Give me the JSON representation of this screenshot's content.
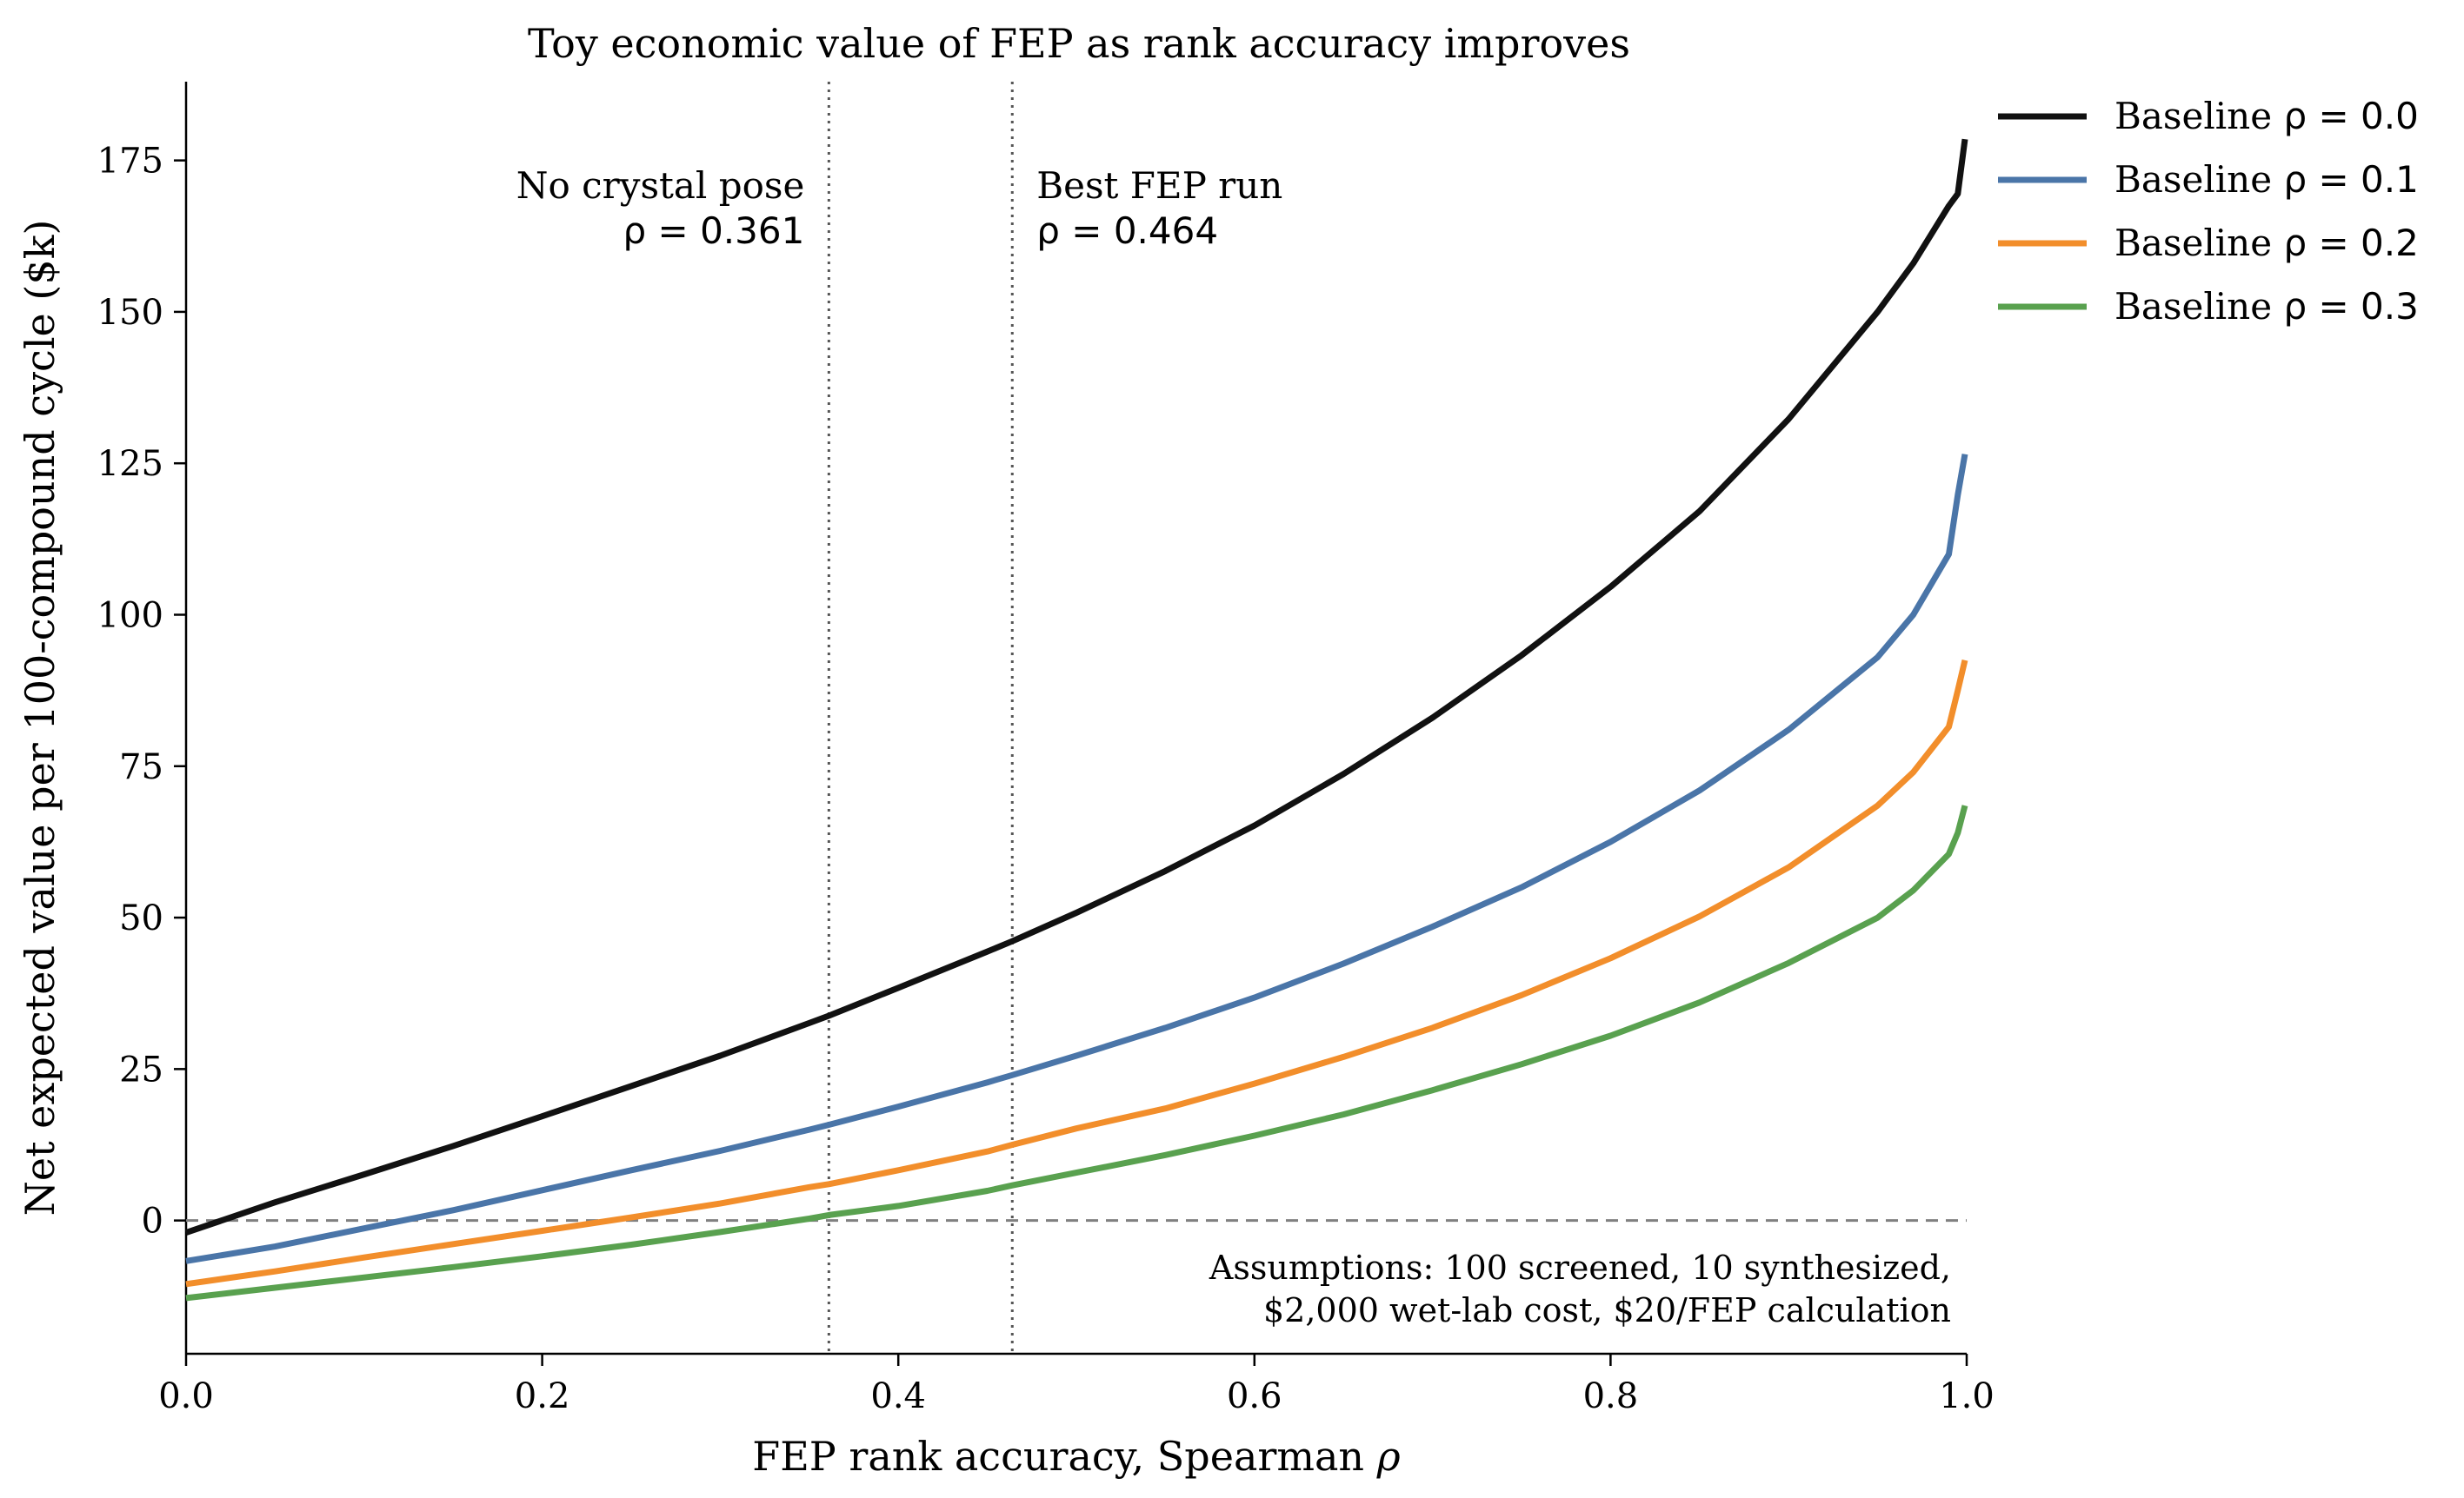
{
  "chart_data": {
    "type": "line",
    "title": "Toy economic value of FEP as rank accuracy improves",
    "xlabel_text": "FEP rank accuracy, Spearman ",
    "xlabel_symbol": "ρ",
    "ylabel": "Net expected value per 100-compound cycle ($k)",
    "xlim": [
      0.0,
      1.0
    ],
    "ylim": [
      -22,
      188
    ],
    "xticks": [
      0.0,
      0.2,
      0.4,
      0.6,
      0.8,
      1.0
    ],
    "xtick_labels": [
      "0.0",
      "0.2",
      "0.4",
      "0.6",
      "0.8",
      "1.0"
    ],
    "yticks": [
      0,
      25,
      50,
      75,
      100,
      125,
      150,
      175
    ],
    "ytick_labels": [
      "0",
      "25",
      "50",
      "75",
      "100",
      "125",
      "150",
      "175"
    ],
    "grid": false,
    "legend_position": "outside-top-right",
    "zero_line": {
      "y": 0,
      "style": "dashed",
      "color": "#808080"
    },
    "reference_lines": [
      {
        "x": 0.361,
        "label_line1": "No crystal pose",
        "label_line2": "ρ = 0.361",
        "align": "right"
      },
      {
        "x": 0.464,
        "label_line1": "Best FEP run",
        "label_line2": "ρ = 0.464",
        "align": "left"
      }
    ],
    "annotation": {
      "line1": "Assumptions: 100 screened, 10 synthesized,",
      "line2": "$2,000 wet-lab cost, $20/FEP calculation"
    },
    "series": [
      {
        "name": "Baseline ρ = 0.0",
        "legend_text": "Baseline ",
        "legend_symbol": "ρ = 0.0",
        "color": "#111111",
        "x": [
          0.0,
          0.05,
          0.1,
          0.15,
          0.2,
          0.25,
          0.3,
          0.35,
          0.361,
          0.4,
          0.45,
          0.464,
          0.5,
          0.55,
          0.6,
          0.65,
          0.7,
          0.75,
          0.8,
          0.85,
          0.9,
          0.95,
          0.97,
          0.99,
          0.995,
          0.999
        ],
        "y": [
          -2,
          3,
          7.6,
          12.3,
          17.2,
          22.2,
          27.2,
          32.6,
          33.8,
          38.4,
          44.4,
          46.1,
          50.8,
          57.7,
          65.2,
          73.7,
          83.0,
          93.3,
          104.6,
          117.1,
          132.3,
          150.0,
          158.0,
          167.5,
          169.5,
          178.5
        ]
      },
      {
        "name": "Baseline ρ = 0.1",
        "legend_text": "Baseline ",
        "legend_symbol": "ρ = 0.1",
        "color": "#4a75a8",
        "x": [
          0.0,
          0.05,
          0.1,
          0.15,
          0.2,
          0.25,
          0.3,
          0.35,
          0.361,
          0.4,
          0.45,
          0.464,
          0.5,
          0.55,
          0.6,
          0.65,
          0.7,
          0.75,
          0.8,
          0.85,
          0.9,
          0.95,
          0.97,
          0.99,
          0.995,
          0.999
        ],
        "y": [
          -6.7,
          -4.3,
          -1.3,
          1.7,
          5.0,
          8.3,
          11.5,
          15.0,
          15.8,
          18.8,
          22.8,
          24.0,
          27.2,
          31.8,
          36.8,
          42.4,
          48.5,
          55.0,
          62.5,
          71.0,
          81.0,
          93.0,
          100.0,
          110.0,
          119.8,
          126.5
        ]
      },
      {
        "name": "Baseline ρ = 0.2",
        "legend_text": "Baseline ",
        "legend_symbol": "ρ = 0.2",
        "color": "#f28e2b",
        "x": [
          0.0,
          0.05,
          0.1,
          0.15,
          0.2,
          0.25,
          0.3,
          0.35,
          0.361,
          0.4,
          0.45,
          0.464,
          0.5,
          0.55,
          0.6,
          0.65,
          0.7,
          0.75,
          0.8,
          0.85,
          0.9,
          0.95,
          0.97,
          0.99,
          0.995,
          0.999
        ],
        "y": [
          -10.5,
          -8.4,
          -6.1,
          -3.9,
          -1.7,
          0.5,
          2.8,
          5.5,
          6.0,
          8.3,
          11.4,
          12.5,
          15.2,
          18.5,
          22.6,
          27.0,
          31.8,
          37.2,
          43.3,
          50.2,
          58.3,
          68.5,
          74.0,
          81.5,
          87.5,
          92.5
        ]
      },
      {
        "name": "Baseline ρ = 0.3",
        "legend_text": "Baseline ",
        "legend_symbol": "ρ = 0.3",
        "color": "#59a14f",
        "x": [
          0.0,
          0.05,
          0.1,
          0.15,
          0.2,
          0.25,
          0.3,
          0.35,
          0.361,
          0.4,
          0.45,
          0.464,
          0.5,
          0.55,
          0.6,
          0.65,
          0.7,
          0.75,
          0.8,
          0.85,
          0.9,
          0.95,
          0.97,
          0.99,
          0.995,
          0.999
        ],
        "y": [
          -12.8,
          -11.1,
          -9.4,
          -7.7,
          -5.9,
          -4.0,
          -1.9,
          0.3,
          0.9,
          2.4,
          4.9,
          5.8,
          7.9,
          10.8,
          14.0,
          17.5,
          21.5,
          25.8,
          30.5,
          36.0,
          42.5,
          50.0,
          54.5,
          60.5,
          64.0,
          68.5
        ]
      }
    ]
  }
}
